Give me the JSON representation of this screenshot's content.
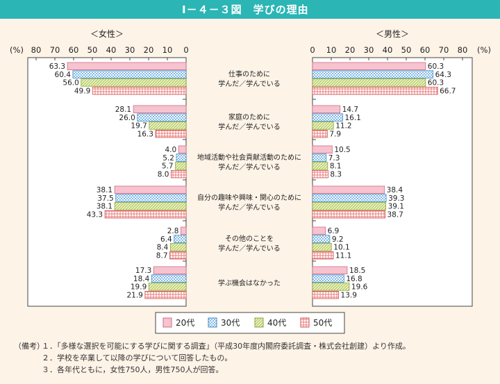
{
  "title": "Ⅰ－４－３図　学びの理由",
  "chart_data": {
    "type": "bar",
    "panels": [
      {
        "name": "＜女性＞",
        "unit": "(%)",
        "ticks": [
          80,
          70,
          60,
          50,
          40,
          30,
          20,
          10,
          0
        ],
        "series": [
          {
            "name": "20代",
            "values": [
              63.3,
              28.1,
              4.0,
              38.1,
              2.8,
              17.3
            ]
          },
          {
            "name": "30代",
            "values": [
              60.4,
              26.0,
              5.2,
              37.5,
              6.4,
              18.4
            ]
          },
          {
            "name": "40代",
            "values": [
              56.0,
              19.7,
              5.7,
              38.1,
              8.4,
              19.9
            ]
          },
          {
            "name": "50代",
            "values": [
              49.9,
              16.3,
              8.0,
              43.3,
              8.7,
              21.9
            ]
          }
        ]
      },
      {
        "name": "＜男性＞",
        "unit": "(%)",
        "ticks": [
          0,
          10,
          20,
          30,
          40,
          50,
          60,
          70,
          80
        ],
        "series": [
          {
            "name": "20代",
            "values": [
              60.3,
              14.7,
              10.5,
              38.4,
              6.9,
              18.5
            ]
          },
          {
            "name": "30代",
            "values": [
              64.3,
              16.1,
              7.3,
              39.3,
              9.2,
              16.8
            ]
          },
          {
            "name": "40代",
            "values": [
              60.3,
              11.2,
              8.1,
              39.1,
              10.1,
              19.6
            ]
          },
          {
            "name": "50代",
            "values": [
              66.7,
              7.9,
              8.3,
              38.7,
              11.1,
              13.9
            ]
          }
        ]
      }
    ],
    "categories": [
      [
        "仕事のために",
        "学んだ／学んでいる"
      ],
      [
        "家庭のために",
        "学んだ／学んでいる"
      ],
      [
        "地域活動や社会貢献活動のために",
        "学んだ／学んでいる"
      ],
      [
        "自分の趣味や興味・関心のために",
        "学んだ／学んでいる"
      ],
      [
        "その他のことを",
        "学んだ／学んでいる"
      ],
      [
        "学ぶ機会はなかった"
      ]
    ],
    "xlim": [
      0,
      80
    ],
    "legend": [
      "20代",
      "30代",
      "40代",
      "50代"
    ],
    "legend_position": "bottom",
    "colors": {
      "20代": "#f4a7b9",
      "30代": "#8ec3ea",
      "40代": "#cddc8a",
      "50代": "#ef8c8c"
    }
  },
  "notes": {
    "label": "（備考）",
    "items": [
      "１．「多様な選択を可能にする学びに関する調査」（平成30年度内閣府委託調査・株式会社創建）より作成。",
      "２．学校を卒業して以降の学びについて回答したもの。",
      "３．各年代ともに，女性750人，男性750人が回答。"
    ]
  }
}
